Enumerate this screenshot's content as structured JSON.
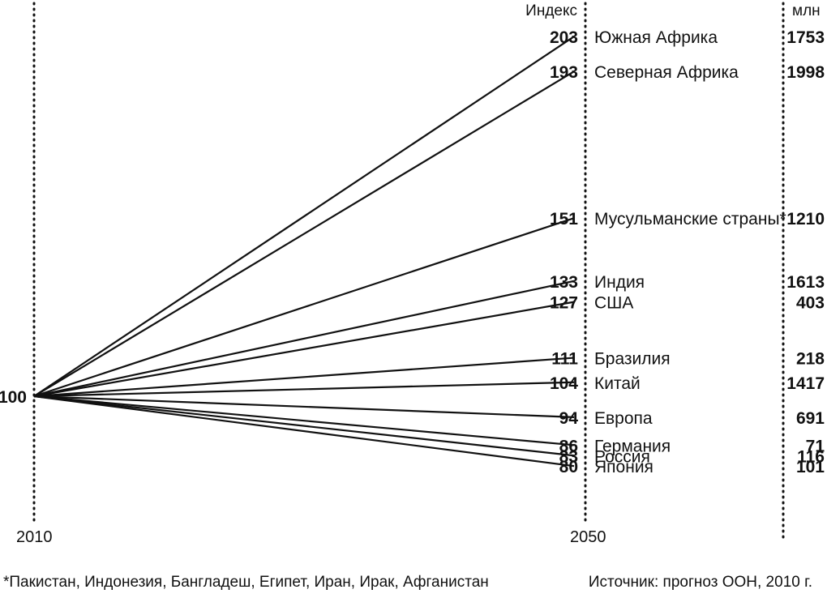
{
  "chart_data": {
    "type": "line",
    "x": [
      "2010",
      "2050"
    ],
    "index_header": "Индекс",
    "million_header": "млн",
    "base_value": 100,
    "base_label": "100",
    "series": [
      {
        "name": "Южная Африка",
        "values": [
          100,
          203
        ],
        "index_label": "203",
        "population_mln": "1753"
      },
      {
        "name": "Северная Африка",
        "values": [
          100,
          193
        ],
        "index_label": "193",
        "population_mln": "1998"
      },
      {
        "name": "Мусульманские страны*",
        "values": [
          100,
          151
        ],
        "index_label": "151",
        "population_mln": "1210"
      },
      {
        "name": "Индия",
        "values": [
          100,
          133
        ],
        "index_label": "133",
        "population_mln": "1613"
      },
      {
        "name": "США",
        "values": [
          100,
          127
        ],
        "index_label": "127",
        "population_mln": "403"
      },
      {
        "name": "Бразилия",
        "values": [
          100,
          111
        ],
        "index_label": "111",
        "population_mln": "218"
      },
      {
        "name": "Китай",
        "values": [
          100,
          104
        ],
        "index_label": "104",
        "population_mln": "1417"
      },
      {
        "name": "Европа",
        "values": [
          100,
          94
        ],
        "index_label": "94",
        "population_mln": "691"
      },
      {
        "name": "Германия",
        "values": [
          100,
          86
        ],
        "index_label": "86",
        "population_mln": "71"
      },
      {
        "name": "Россия",
        "values": [
          100,
          83
        ],
        "index_label": "83",
        "population_mln": "116"
      },
      {
        "name": "Япония",
        "values": [
          100,
          80
        ],
        "index_label": "80",
        "population_mln": "101"
      }
    ],
    "footnote": "*Пакистан, Индонезия, Бангладеш, Египет, Иран, Ирак, Афганистан",
    "source": "Источник: прогноз ООН, 2010 г."
  }
}
